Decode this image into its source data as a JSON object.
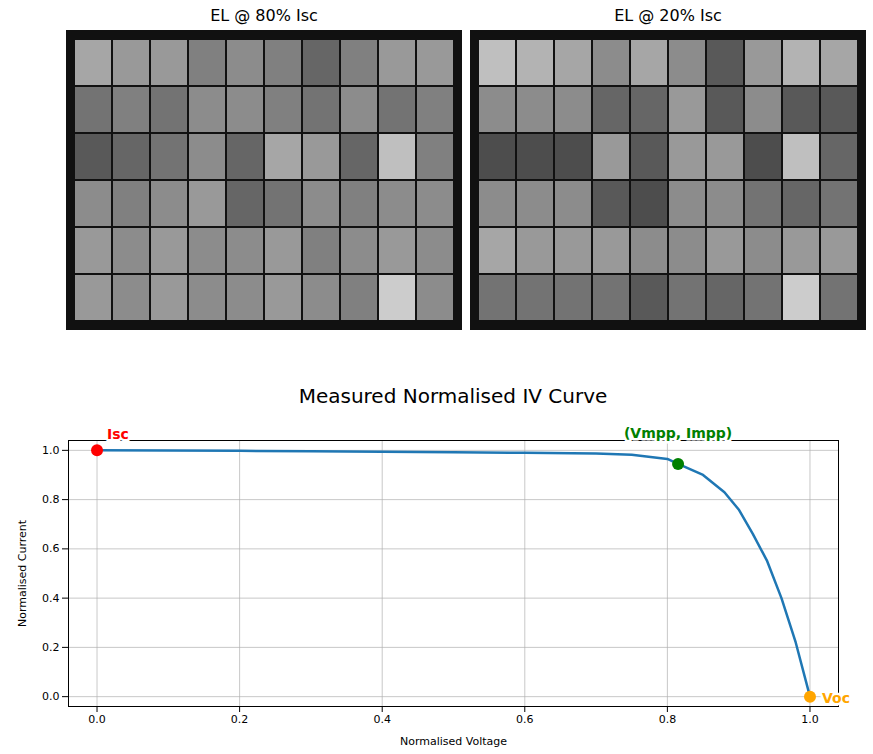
{
  "chart_data": [
    {
      "type": "heatmap",
      "title": "EL @ 80% Isc",
      "tick_labels": false,
      "zlim": [
        0,
        1
      ],
      "cells": [
        [
          0.65,
          0.6,
          0.6,
          0.5,
          0.55,
          0.5,
          0.4,
          0.5,
          0.6,
          0.6
        ],
        [
          0.45,
          0.5,
          0.45,
          0.55,
          0.55,
          0.5,
          0.45,
          0.55,
          0.45,
          0.5
        ],
        [
          0.35,
          0.4,
          0.45,
          0.55,
          0.4,
          0.65,
          0.6,
          0.4,
          0.75,
          0.5
        ],
        [
          0.55,
          0.5,
          0.55,
          0.6,
          0.4,
          0.45,
          0.55,
          0.5,
          0.55,
          0.55
        ],
        [
          0.6,
          0.55,
          0.6,
          0.55,
          0.55,
          0.6,
          0.5,
          0.55,
          0.6,
          0.55
        ],
        [
          0.6,
          0.55,
          0.6,
          0.55,
          0.55,
          0.6,
          0.55,
          0.5,
          0.8,
          0.55
        ]
      ]
    },
    {
      "type": "heatmap",
      "title": "EL @ 20% Isc",
      "tick_labels": false,
      "zlim": [
        0,
        1
      ],
      "cells": [
        [
          0.75,
          0.7,
          0.65,
          0.55,
          0.65,
          0.55,
          0.35,
          0.6,
          0.7,
          0.65
        ],
        [
          0.55,
          0.55,
          0.55,
          0.4,
          0.4,
          0.6,
          0.35,
          0.55,
          0.35,
          0.35
        ],
        [
          0.3,
          0.3,
          0.3,
          0.6,
          0.35,
          0.6,
          0.6,
          0.3,
          0.75,
          0.4
        ],
        [
          0.55,
          0.55,
          0.55,
          0.35,
          0.3,
          0.55,
          0.55,
          0.45,
          0.4,
          0.45
        ],
        [
          0.65,
          0.6,
          0.6,
          0.6,
          0.55,
          0.55,
          0.6,
          0.55,
          0.6,
          0.6
        ],
        [
          0.45,
          0.45,
          0.45,
          0.45,
          0.35,
          0.45,
          0.4,
          0.45,
          0.8,
          0.45
        ]
      ]
    },
    {
      "type": "line",
      "title": "Measured Normalised IV Curve",
      "xlabel": "Normalised Voltage",
      "ylabel": "Normalised Current",
      "x": [
        0.0,
        0.1,
        0.2,
        0.3,
        0.4,
        0.5,
        0.6,
        0.7,
        0.75,
        0.8,
        0.815,
        0.85,
        0.88,
        0.9,
        0.92,
        0.94,
        0.96,
        0.98,
        1.0
      ],
      "values": [
        1.0,
        0.999,
        0.998,
        0.996,
        0.994,
        0.992,
        0.99,
        0.987,
        0.982,
        0.965,
        0.945,
        0.9,
        0.83,
        0.76,
        0.66,
        0.55,
        0.4,
        0.22,
        0.0
      ],
      "color": "#1f77b4",
      "xlim": [
        -0.04,
        1.04
      ],
      "ylim": [
        -0.04,
        1.04
      ],
      "xticks": [
        {
          "value": 0,
          "label": "0.0"
        },
        {
          "value": 0.2,
          "label": "0.2"
        },
        {
          "value": 0.4,
          "label": "0.4"
        },
        {
          "value": 0.6,
          "label": "0.6"
        },
        {
          "value": 0.8,
          "label": "0.8"
        },
        {
          "value": 1,
          "label": "1.0"
        }
      ],
      "yticks": [
        {
          "value": 0,
          "label": "0.0"
        },
        {
          "value": 0.2,
          "label": "0.2"
        },
        {
          "value": 0.4,
          "label": "0.4"
        },
        {
          "value": 0.6,
          "label": "0.6"
        },
        {
          "value": 0.8,
          "label": "0.8"
        },
        {
          "value": 1,
          "label": "1.0"
        }
      ],
      "grid": true,
      "annotations": [
        {
          "text": "Isc",
          "x": 0.0,
          "y": 1.0,
          "color": "red",
          "marker": "o"
        },
        {
          "text": "(Vmpp, Impp)",
          "x": 0.815,
          "y": 0.945,
          "color": "green",
          "marker": "o"
        },
        {
          "text": "Voc",
          "x": 1.0,
          "y": 0.0,
          "color": "orange",
          "marker": "o"
        }
      ]
    }
  ]
}
